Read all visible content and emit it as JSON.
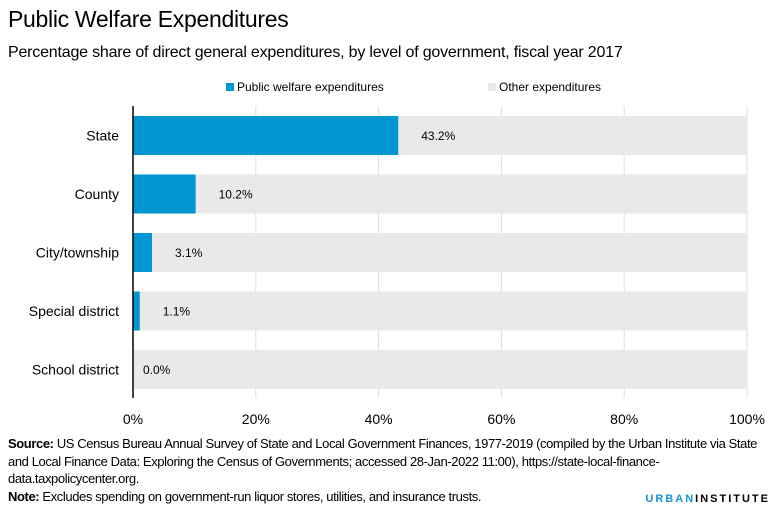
{
  "header": {
    "title": "Public Welfare Expenditures",
    "subtitle": "Percentage share of direct general expenditures, by level of government, fiscal year 2017"
  },
  "colors": {
    "welfare": "#0096d2",
    "other": "#e9e9e9",
    "grid": "#dedede",
    "axis": "#000000",
    "brand": "#1696d2"
  },
  "chart_data": {
    "type": "bar",
    "orientation": "horizontal",
    "stacked": true,
    "title": "Public Welfare Expenditures",
    "subtitle": "Percentage share of direct general expenditures, by level of government, fiscal year 2017",
    "categories": [
      "State",
      "County",
      "City/township",
      "Special district",
      "School district"
    ],
    "series": [
      {
        "name": "Public welfare expenditures",
        "values": [
          43.2,
          10.2,
          3.1,
          1.1,
          0.0
        ]
      },
      {
        "name": "Other expenditures",
        "values": [
          56.8,
          89.8,
          96.9,
          98.9,
          100.0
        ]
      }
    ],
    "data_labels": [
      "43.2%",
      "10.2%",
      "3.1%",
      "1.1%",
      "0.0%"
    ],
    "xlabel": "",
    "ylabel": "",
    "xlim": [
      0,
      100
    ],
    "xticks": [
      0,
      20,
      40,
      60,
      80,
      100
    ],
    "xtick_labels": [
      "0%",
      "20%",
      "40%",
      "60%",
      "80%",
      "100%"
    ],
    "grid": true,
    "legend_position": "top-center"
  },
  "legend": {
    "items": [
      {
        "label": "Public welfare expenditures"
      },
      {
        "label": "Other expenditures"
      }
    ]
  },
  "footer": {
    "source_label": "Source:",
    "source_text": " US Census Bureau Annual Survey of State and Local Government Finances, 1977-2019 (compiled by the Urban Institute via State and Local Finance Data: Exploring the Census of Governments; accessed 28-Jan-2022 11:00), https://state-local-finance-data.taxpolicycenter.org.",
    "note_label": "Note:",
    "note_text": " Excludes spending on government-run liquor stores, utilities, and insurance trusts."
  },
  "logo": {
    "part1": "URBAN",
    "part2": "INSTITUTE"
  }
}
